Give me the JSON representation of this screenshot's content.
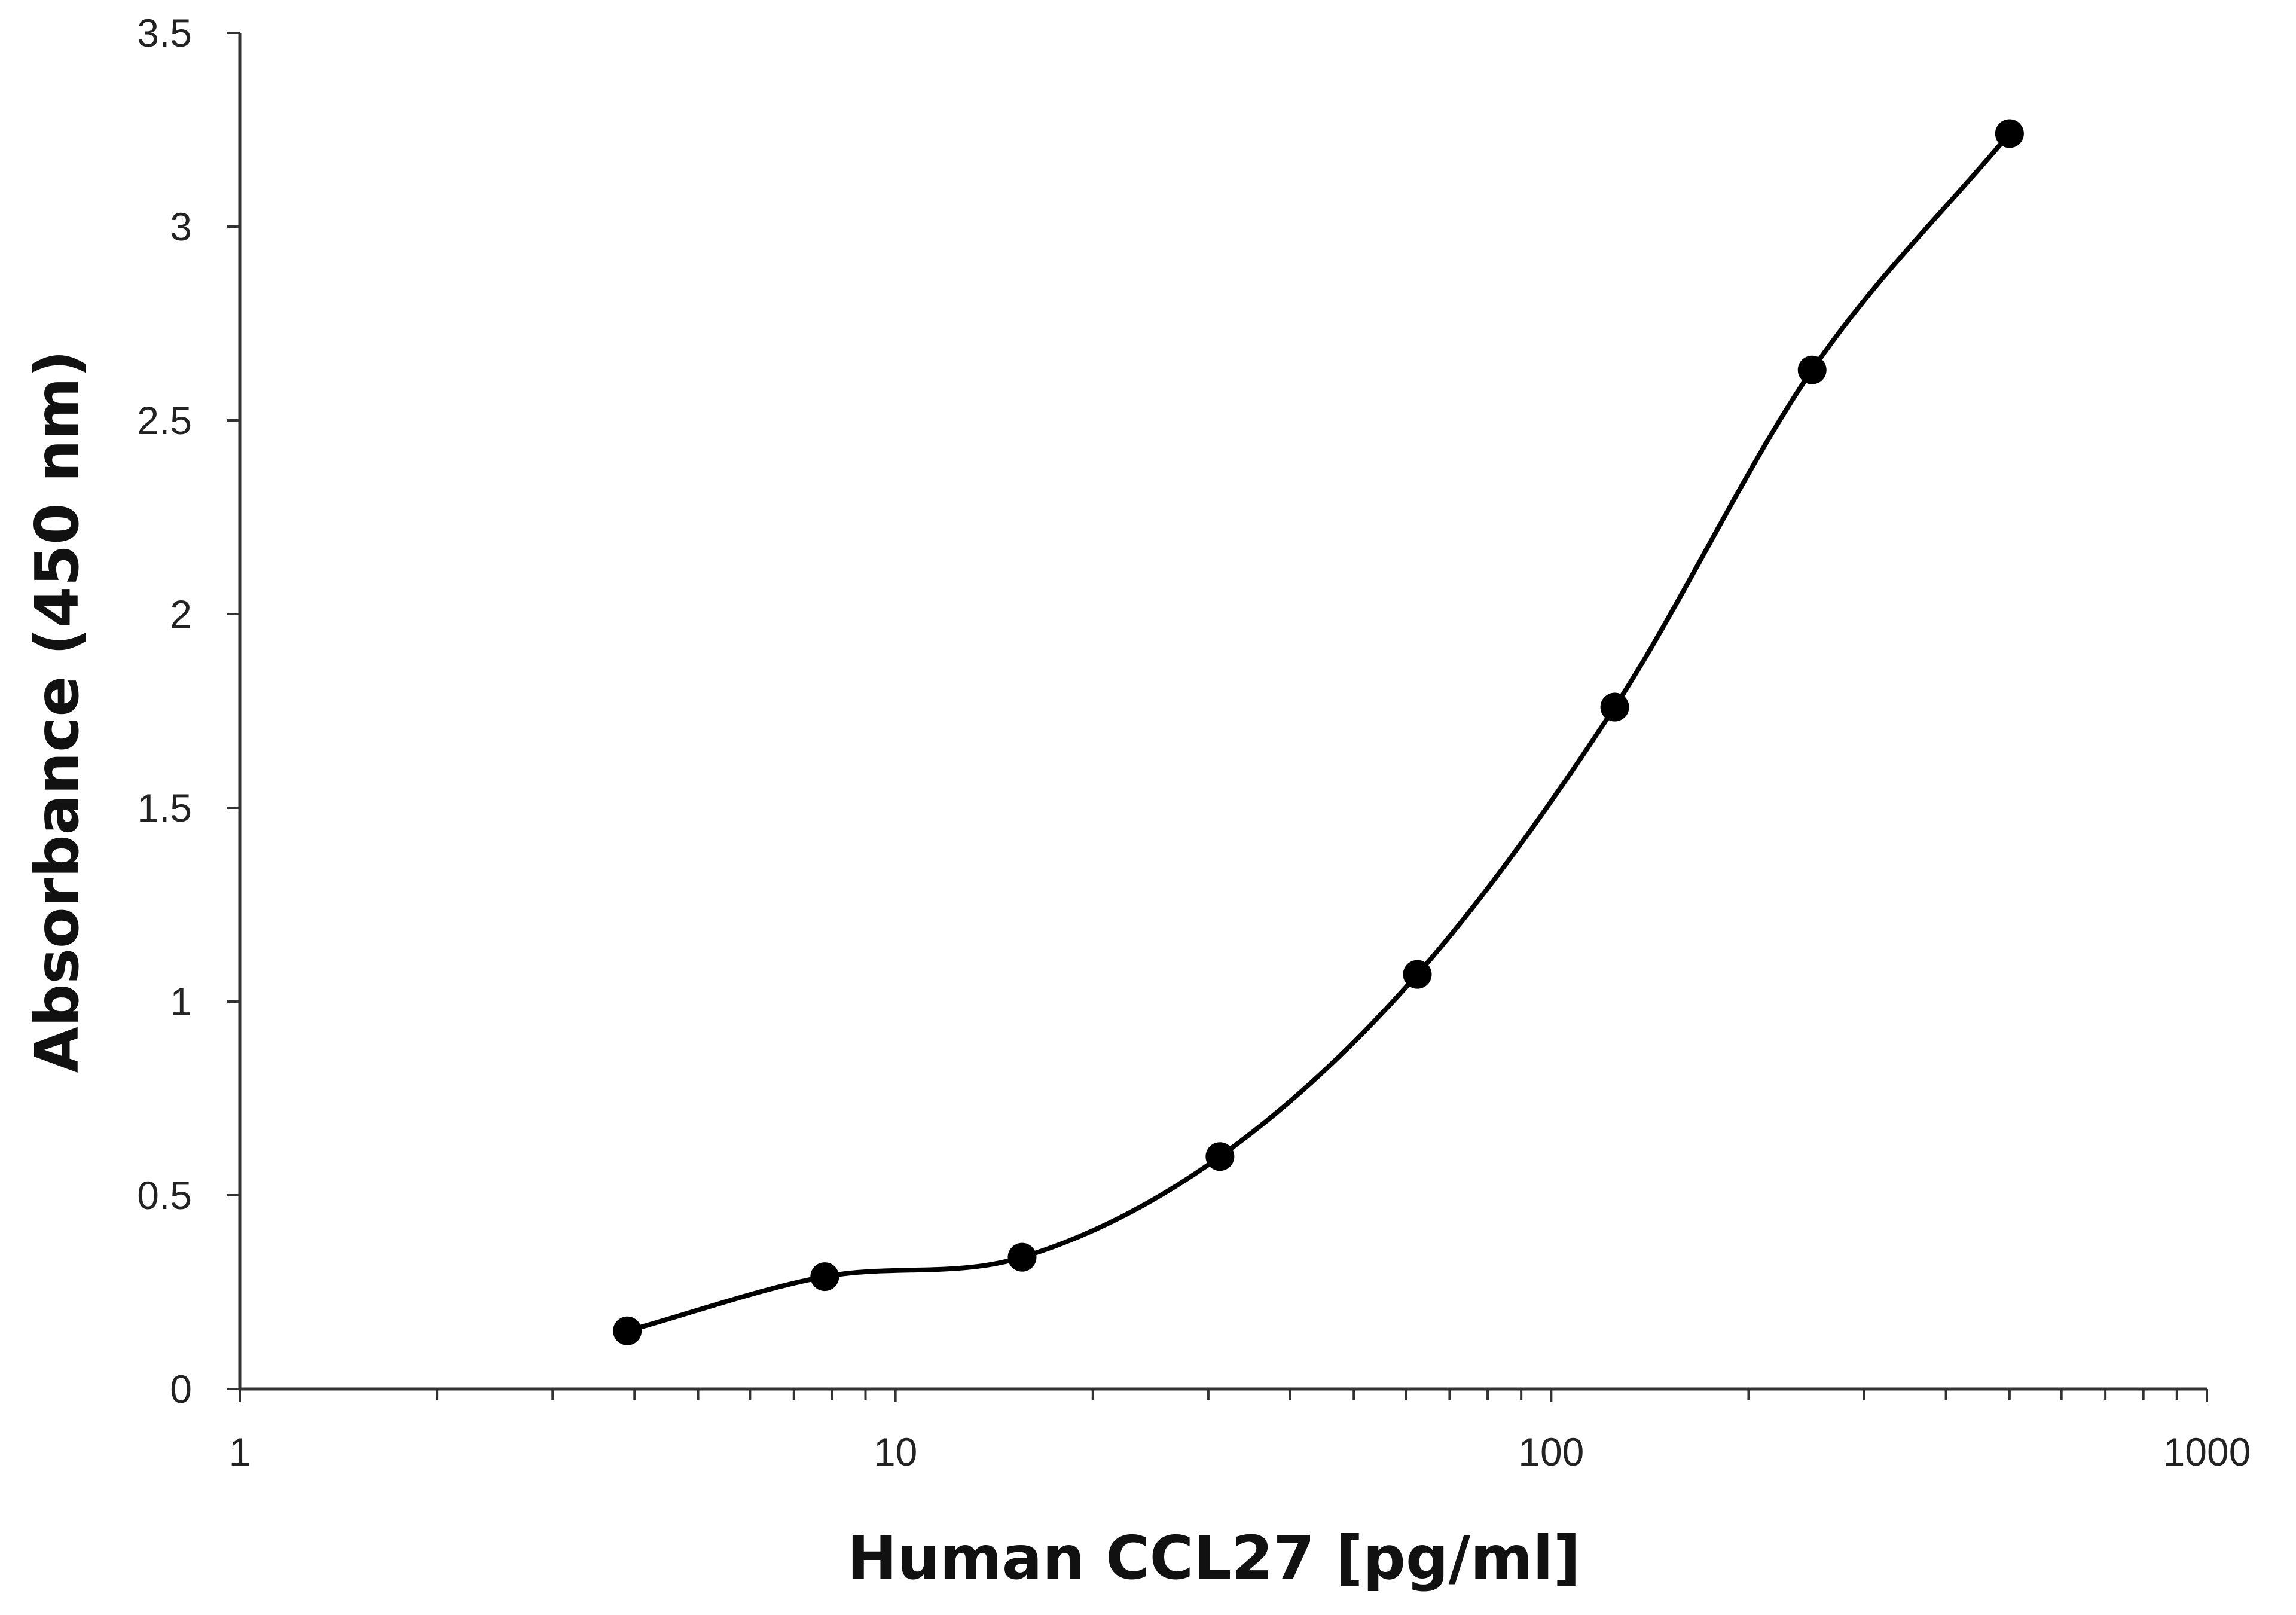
{
  "chart_data": {
    "type": "scatter",
    "title": "",
    "xlabel": "Human CCL27 [pg/ml]",
    "ylabel": "Absorbance (450 nm)",
    "x_scale": "log",
    "xlim": [
      1,
      1000
    ],
    "ylim": [
      0,
      3.5
    ],
    "x_ticks": [
      1,
      10,
      100,
      1000
    ],
    "x_tick_labels": [
      "1",
      "10",
      "100",
      "1000"
    ],
    "y_ticks": [
      0,
      0.5,
      1,
      1.5,
      2,
      2.5,
      3,
      3.5
    ],
    "y_tick_labels": [
      "0",
      "0.5",
      "1",
      "1.5",
      "2",
      "2.5",
      "3",
      "3.5"
    ],
    "grid": false,
    "line": "smoothed",
    "marker": "filled-circle",
    "series_color": "#000000",
    "series": [
      {
        "x": [
          3.9,
          7.8,
          15.6,
          31.25,
          62.5,
          125,
          250,
          500
        ],
        "y": [
          0.15,
          0.29,
          0.34,
          0.6,
          1.07,
          1.76,
          2.63,
          3.24
        ]
      }
    ]
  }
}
